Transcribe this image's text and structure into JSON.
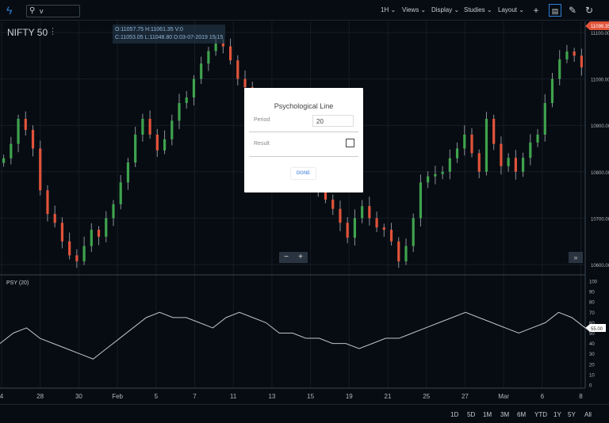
{
  "toolbar": {
    "search_value": "v",
    "interval": "1H",
    "menus": [
      "Views",
      "Display",
      "Studies",
      "Layout"
    ]
  },
  "symbol": "NIFTY 50",
  "ohlc": {
    "line1": "O:11057.75  H:11061.35  V:0",
    "line2": "C:11053.05  L:11048.80  D:03-07-2019 15:15"
  },
  "dialog": {
    "title": "Psychological Line",
    "period_label": "Period",
    "period_value": "20",
    "result_label": "Result",
    "result_checked": false,
    "done_label": "DONE"
  },
  "indicator_label": "PSY (20)",
  "ranges": [
    "1D",
    "5D",
    "1M",
    "3M",
    "6M",
    "YTD",
    "1Y",
    "5Y",
    "All"
  ],
  "colors": {
    "up": "#3fa34d",
    "down": "#e2533a",
    "accent": "#2f7fd8",
    "price_tag": "#e2533a"
  },
  "chart_data": [
    {
      "type": "candlestick",
      "price_axis": {
        "ticks": [
          "11100.00",
          "11000.00",
          "10900.00",
          "10800.00",
          "10700.00",
          "10600.00"
        ],
        "range": [
          10580,
          11130
        ]
      },
      "current_price": "11099.35",
      "x_ticks": [
        "4",
        "28",
        "30",
        "Feb",
        "5",
        "7",
        "11",
        "13",
        "15",
        "19",
        "21",
        "25",
        "27",
        "Mar",
        "6",
        "8"
      ],
      "closes": [
        10829,
        10860,
        10914,
        10890,
        10850,
        10760,
        10709,
        10690,
        10650,
        10620,
        10607,
        10640,
        10675,
        10660,
        10700,
        10730,
        10777,
        10820,
        10880,
        10914,
        10880,
        10846,
        10870,
        10910,
        10948,
        10960,
        11000,
        11033,
        11060,
        11076,
        11070,
        11040,
        11000,
        10982,
        10940,
        10880,
        10860,
        10840,
        10820,
        10800,
        10790,
        10780,
        10770,
        10760,
        10740,
        10720,
        10690,
        10658,
        10700,
        10726,
        10700,
        10680,
        10675,
        10650,
        10607,
        10640,
        10700,
        10777,
        10790,
        10795,
        10800,
        10829,
        10850,
        10880,
        10840,
        10800,
        10914,
        10860,
        10812,
        10830,
        10800,
        10830,
        10863,
        10880,
        10948,
        11000,
        11042,
        11059,
        11050,
        11025
      ]
    },
    {
      "type": "line",
      "name": "PSY (20)",
      "y_ticks": [
        "100",
        "90",
        "80",
        "70",
        "60",
        "50",
        "40",
        "30",
        "20",
        "10",
        "0"
      ],
      "ylim": [
        0,
        100
      ],
      "current_value": "55.00",
      "values": [
        40,
        50,
        55,
        45,
        40,
        35,
        30,
        25,
        35,
        45,
        55,
        65,
        70,
        65,
        65,
        60,
        55,
        65,
        70,
        65,
        60,
        50,
        50,
        45,
        45,
        40,
        40,
        35,
        40,
        45,
        45,
        50,
        55,
        60,
        65,
        70,
        65,
        60,
        55,
        50,
        55,
        60,
        70,
        65,
        55
      ]
    }
  ]
}
